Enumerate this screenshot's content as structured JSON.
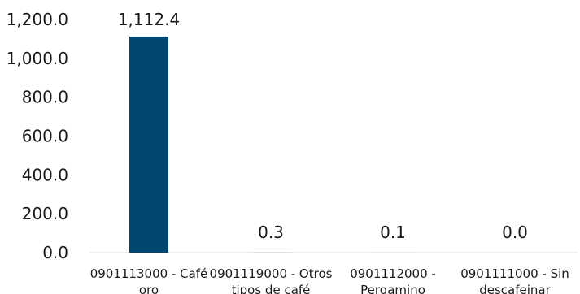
{
  "chart_data": {
    "type": "bar",
    "title": "",
    "xlabel": "",
    "ylabel": "",
    "ylim": [
      0,
      1200
    ],
    "yticks": [
      "0.0",
      "200.0",
      "400.0",
      "600.0",
      "800.0",
      "1,000.0",
      "1,200.0"
    ],
    "grid": false,
    "legend": "none",
    "bar_color": "#00466e",
    "categories": [
      [
        "0901113000 -  Café",
        "oro"
      ],
      [
        "0901119000 - Otros",
        "tipos de café"
      ],
      [
        "0901112000 -",
        "Pergamino"
      ],
      [
        "0901111000 - Sin",
        "descafeinar"
      ]
    ],
    "values": [
      1112.4,
      0.3,
      0.1,
      0.0
    ],
    "data_labels": [
      "1,112.4",
      "0.3",
      "0.1",
      "0.0"
    ]
  }
}
